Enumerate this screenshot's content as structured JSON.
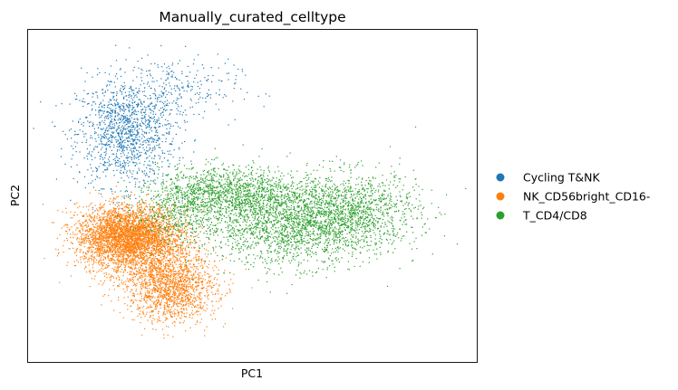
{
  "chart_data": {
    "type": "scatter",
    "title": "Manually_curated_celltype",
    "xlabel": "PC1",
    "ylabel": "PC2",
    "ticks_shown": false,
    "grid": false,
    "legend_position": "right",
    "xlim": [
      0,
      100
    ],
    "ylim": [
      0,
      100
    ],
    "series": [
      {
        "name": "Cycling T&NK",
        "color": "#1f77b4",
        "clusters": [
          {
            "center": [
              22,
              69
            ],
            "spread": [
              5.5,
              8
            ],
            "count": 1300
          },
          {
            "center": [
              33,
              82
            ],
            "spread": [
              7,
              5
            ],
            "count": 250
          }
        ]
      },
      {
        "name": "NK_CD56bright_CD16-",
        "color": "#ff7f0e",
        "clusters": [
          {
            "center": [
              22,
              38
            ],
            "spread": [
              5.5,
              4.5
            ],
            "count": 3200
          },
          {
            "center": [
              32,
              22
            ],
            "spread": [
              5,
              5
            ],
            "count": 1400
          },
          {
            "center": [
              27,
              33
            ],
            "spread": [
              6,
              6
            ],
            "count": 900
          }
        ]
      },
      {
        "name": "T_CD4/CD8",
        "color": "#2ca02c",
        "clusters": [
          {
            "center": [
              45,
              51
            ],
            "spread": [
              8,
              4
            ],
            "count": 1200
          },
          {
            "center": [
              57,
              41
            ],
            "spread": [
              9,
              6
            ],
            "count": 1500
          },
          {
            "center": [
              71,
              45
            ],
            "spread": [
              8,
              6
            ],
            "count": 1400
          },
          {
            "center": [
              34,
              46
            ],
            "spread": [
              5,
              5
            ],
            "count": 500
          }
        ]
      }
    ]
  }
}
